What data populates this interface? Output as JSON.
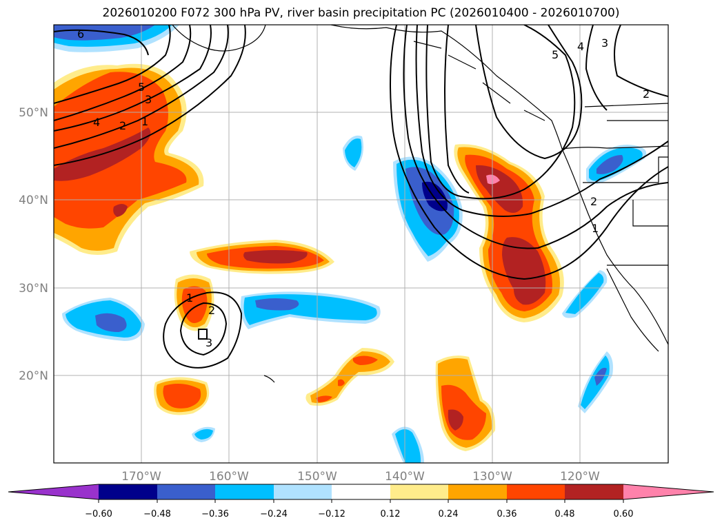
{
  "title": "2026010200 F072 300 hPa PV, river basin precipitation PC (2026010400 - 2026010700)",
  "axes": {
    "lon_ticks": [
      "170°W",
      "160°W",
      "150°W",
      "140°W",
      "130°W",
      "120°W"
    ],
    "lat_ticks": [
      "50°N",
      "40°N",
      "30°N",
      "20°N"
    ]
  },
  "colorbar": {
    "tick_labels": [
      "−0.60",
      "−0.48",
      "−0.36",
      "−0.24",
      "−0.12",
      "0.12",
      "0.24",
      "0.36",
      "0.48",
      "0.60"
    ],
    "colors": [
      "#9932cc",
      "#00008b",
      "#3a5fcd",
      "#00bfff",
      "#b0e2ff",
      "#ffffff",
      "#ffec8b",
      "#ffa500",
      "#ff4500",
      "#b22222",
      "#ff82ab"
    ]
  },
  "contour_labels": [
    "6",
    "5",
    "3",
    "4",
    "2",
    "1",
    "1",
    "2",
    "3",
    "5",
    "4",
    "3",
    "2",
    "2",
    "1"
  ]
}
